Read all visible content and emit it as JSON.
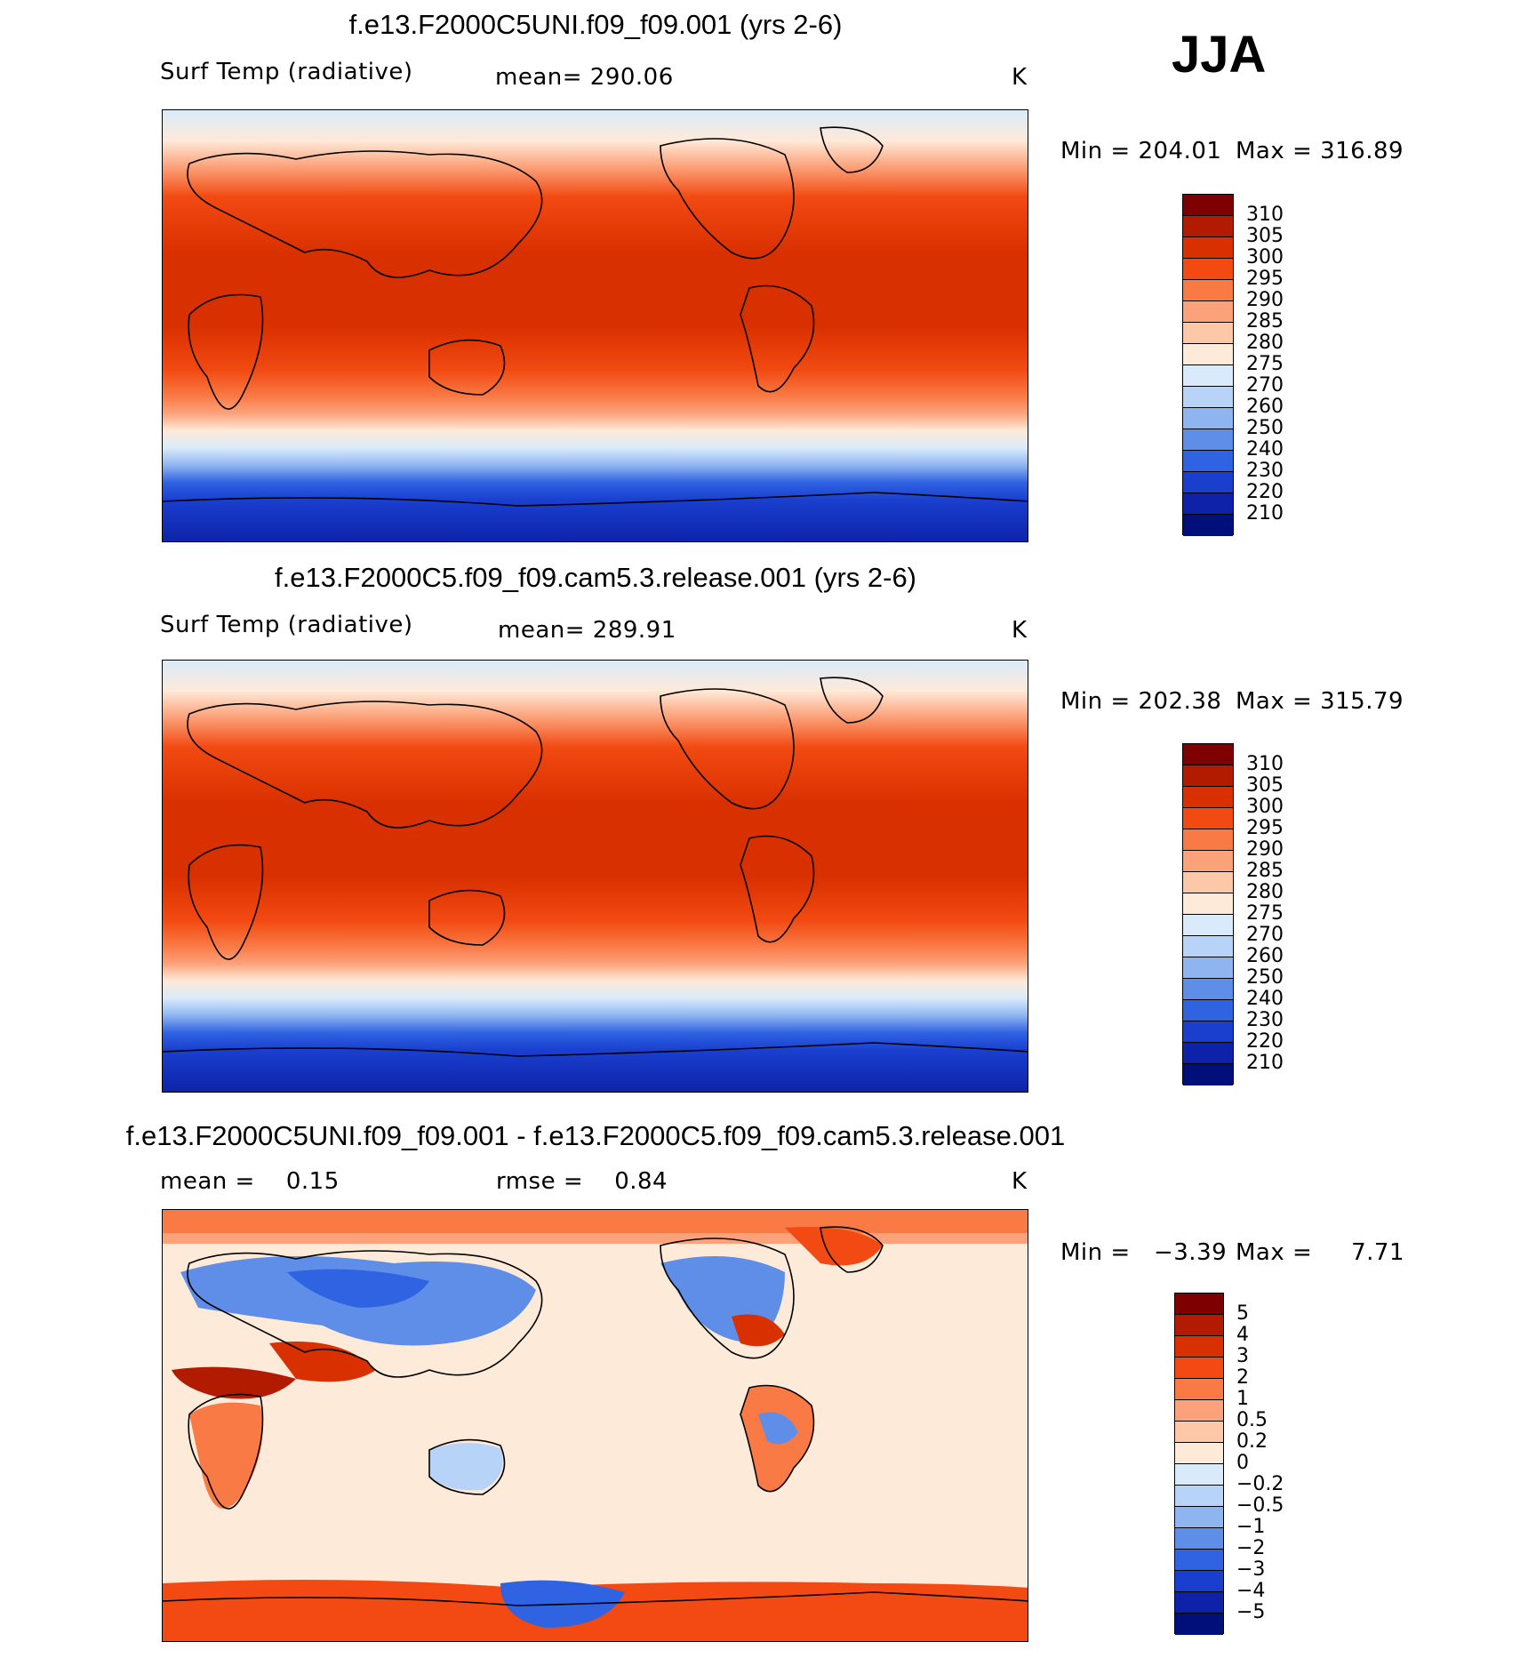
{
  "season": "JJA",
  "chart_data": [
    {
      "type": "heatmap",
      "title": "f.e13.F2000C5UNI.f09_f09.001 (yrs 2-6)",
      "left_label": "Surf Temp (radiative)",
      "center_label": "mean= 290.06",
      "units": "K",
      "min_text": "Min = 204.01",
      "max_text": "Max = 316.89",
      "min": 204.01,
      "max": 316.89,
      "mean": 290.06,
      "colorbar_levels": [
        "310",
        "305",
        "300",
        "295",
        "290",
        "285",
        "280",
        "275",
        "270",
        "260",
        "250",
        "240",
        "230",
        "220",
        "210"
      ],
      "colorbar_colors": [
        "#7f0000",
        "#b31b00",
        "#d93000",
        "#f24a12",
        "#f97a45",
        "#fca27a",
        "#fdc8a8",
        "#feead8",
        "#d9ebfb",
        "#b7d3f7",
        "#8fb5f0",
        "#5f8ee8",
        "#2f63e2",
        "#1a3fcf",
        "#0d22a8",
        "#000f7a"
      ]
    },
    {
      "type": "heatmap",
      "title": "f.e13.F2000C5.f09_f09.cam5.3.release.001 (yrs 2-6)",
      "left_label": "Surf Temp (radiative)",
      "center_label": "mean= 289.91",
      "units": "K",
      "min_text": "Min = 202.38",
      "max_text": "Max = 315.79",
      "min": 202.38,
      "max": 315.79,
      "mean": 289.91,
      "colorbar_levels": [
        "310",
        "305",
        "300",
        "295",
        "290",
        "285",
        "280",
        "275",
        "270",
        "260",
        "250",
        "240",
        "230",
        "220",
        "210"
      ],
      "colorbar_colors": [
        "#7f0000",
        "#b31b00",
        "#d93000",
        "#f24a12",
        "#f97a45",
        "#fca27a",
        "#fdc8a8",
        "#feead8",
        "#d9ebfb",
        "#b7d3f7",
        "#8fb5f0",
        "#5f8ee8",
        "#2f63e2",
        "#1a3fcf",
        "#0d22a8",
        "#000f7a"
      ]
    },
    {
      "type": "heatmap",
      "title": "f.e13.F2000C5UNI.f09_f09.001 - f.e13.F2000C5.f09_f09.cam5.3.release.001",
      "left_label": "mean =    0.15",
      "center_label": "rmse =    0.84",
      "units": "K",
      "min_text": "Min =   −3.39",
      "max_text": "Max =     7.71",
      "min": -3.39,
      "max": 7.71,
      "mean": 0.15,
      "rmse": 0.84,
      "colorbar_levels": [
        "5",
        "4",
        "3",
        "2",
        "1",
        "0.5",
        "0.2",
        "0",
        "−0.2",
        "−0.5",
        "−1",
        "−2",
        "−3",
        "−4",
        "−5"
      ],
      "colorbar_colors": [
        "#7f0000",
        "#b31b00",
        "#d93000",
        "#f24a12",
        "#f97a45",
        "#fca27a",
        "#fdc8a8",
        "#feead8",
        "#d9ebfb",
        "#b7d3f7",
        "#8fb5f0",
        "#5f8ee8",
        "#2f63e2",
        "#1a3fcf",
        "#0d22a8",
        "#000f7a"
      ]
    }
  ]
}
